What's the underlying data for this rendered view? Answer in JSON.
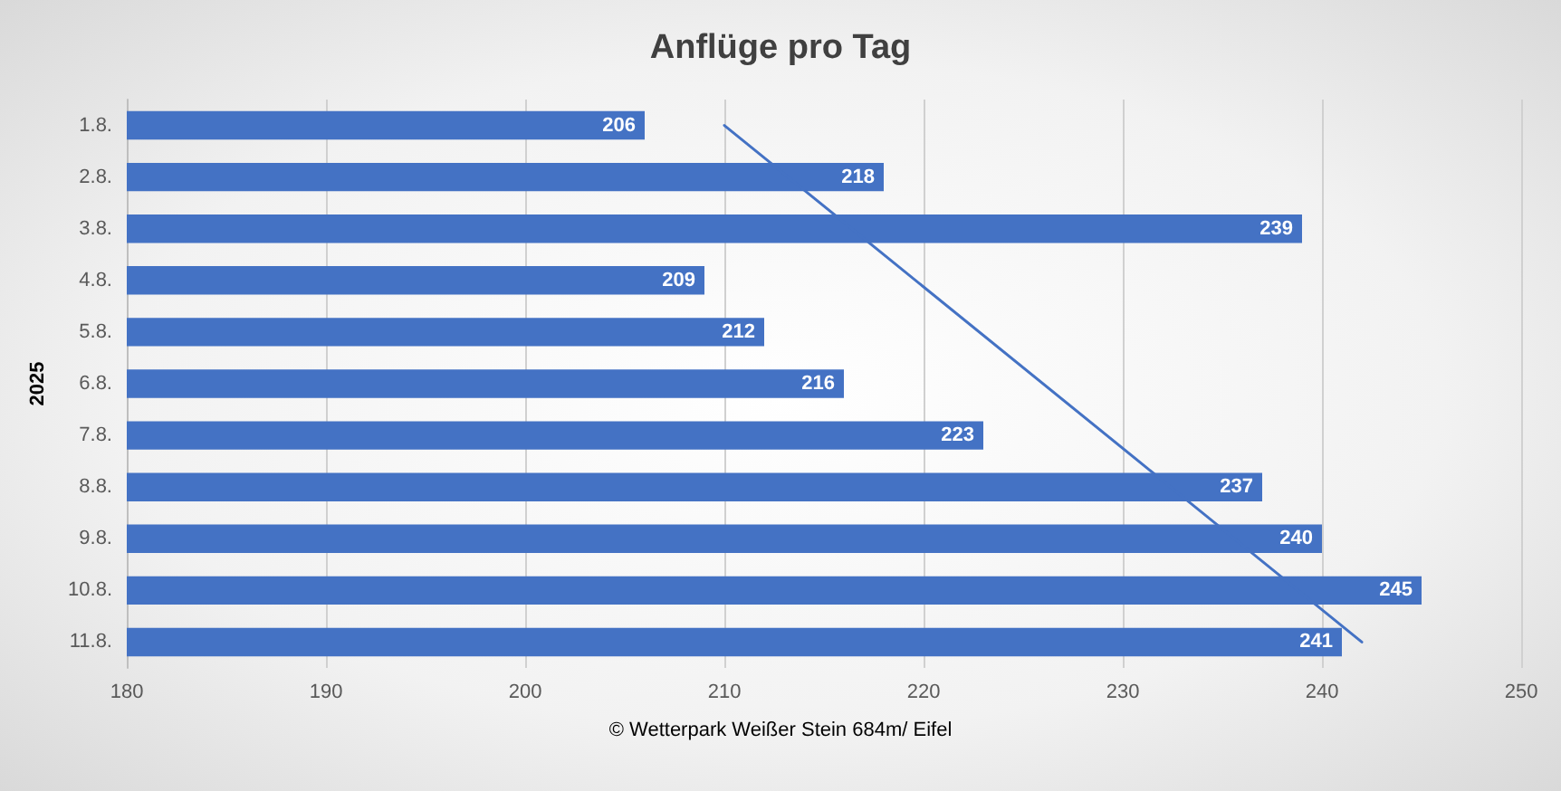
{
  "chart_data": {
    "type": "bar",
    "orientation": "horizontal",
    "title": "Anflüge pro Tag",
    "ylabel": "2025",
    "categories": [
      "1.8.",
      "2.8.",
      "3.8.",
      "4.8.",
      "5.8.",
      "6.8.",
      "7.8.",
      "8.8.",
      "9.8.",
      "10.8.",
      "11.8."
    ],
    "series": [
      {
        "color": "#4472c4",
        "values": [
          206,
          218,
          239,
          209,
          212,
          216,
          223,
          237,
          240,
          245,
          241
        ],
        "value_labels": [
          "206",
          "218",
          "239",
          "209",
          "212",
          "216",
          "223",
          "237",
          "240",
          "245",
          "241"
        ]
      },
      {
        "type": "line",
        "color": "#4472c4",
        "x": [
          "1.8.",
          "11.8."
        ],
        "values": [
          210,
          242
        ]
      }
    ],
    "xlim": [
      180,
      250
    ],
    "xticks": [
      180,
      190,
      200,
      210,
      220,
      230,
      240,
      250
    ],
    "grid": "x",
    "annotations": [
      "© Wetterpark Weißer Stein 684m/ Eifel"
    ]
  }
}
